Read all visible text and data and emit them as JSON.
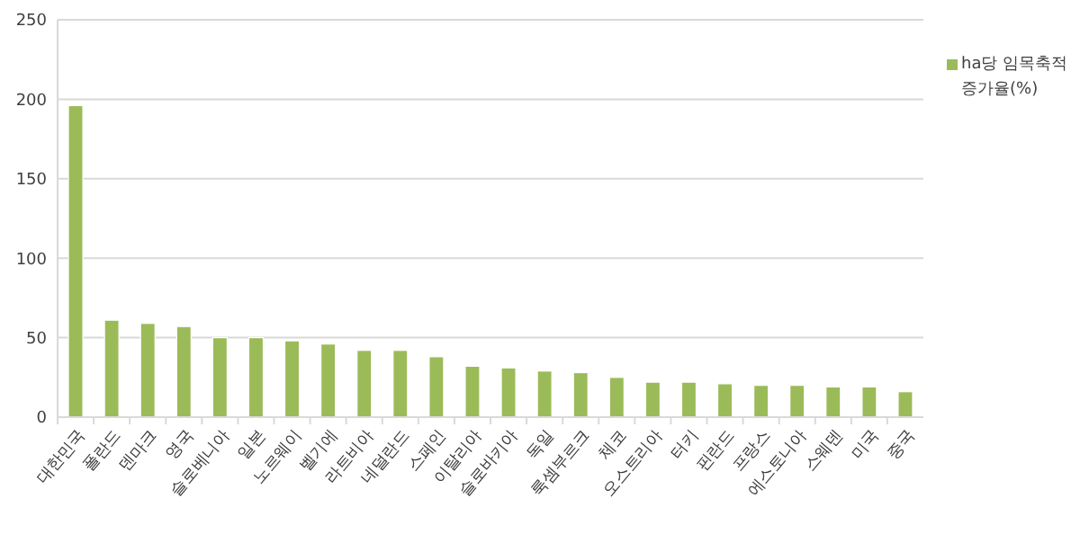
{
  "chart_data": {
    "type": "bar",
    "categories": [
      "대한민국",
      "폴란드",
      "덴마크",
      "영국",
      "슬로베니아",
      "일본",
      "노르웨이",
      "벨기에",
      "라트비아",
      "네덜란드",
      "스페인",
      "이탈리아",
      "슬로바키아",
      "독일",
      "룩셈부르크",
      "체코",
      "오스트리아",
      "터키",
      "핀란드",
      "프랑스",
      "에스토니아",
      "스웨덴",
      "미국",
      "중국"
    ],
    "series": [
      {
        "name": "ha당 임목축적 증가율(%)",
        "color": "#9bbb59",
        "values": [
          196,
          61,
          59,
          57,
          50,
          50,
          48,
          46,
          42,
          42,
          38,
          32,
          31,
          29,
          28,
          25,
          22,
          22,
          21,
          20,
          20,
          19,
          19,
          16
        ]
      }
    ],
    "ylim": [
      0,
      250
    ],
    "yticks": [
      0,
      50,
      100,
      150,
      200,
      250
    ],
    "grid": "y",
    "legend": "top right"
  }
}
